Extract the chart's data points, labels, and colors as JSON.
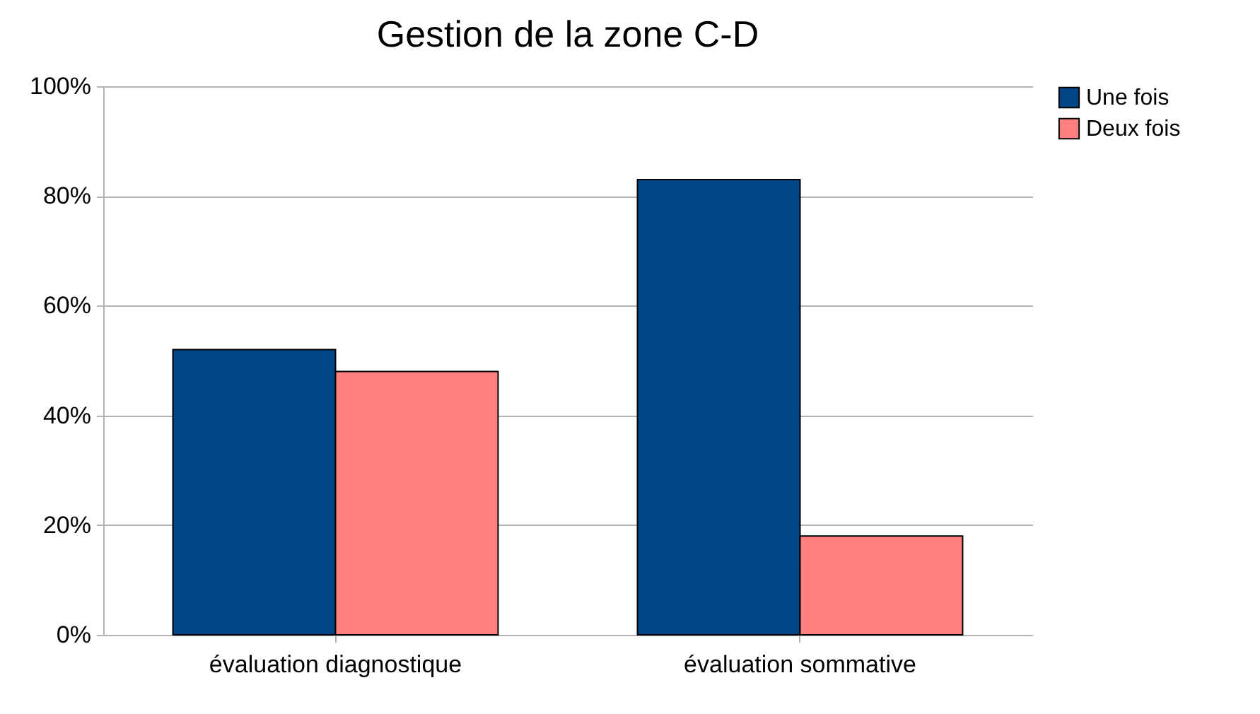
{
  "chart_data": {
    "type": "bar",
    "title": "Gestion de la zone C-D",
    "categories": [
      "évaluation diagnostique",
      "évaluation sommative"
    ],
    "series": [
      {
        "name": "Une fois",
        "color": "#004586",
        "values": [
          52,
          83
        ]
      },
      {
        "name": "Deux fois",
        "color": "#ff8080",
        "values": [
          48,
          18
        ]
      }
    ],
    "ylim": [
      0,
      100
    ],
    "yticks": [
      {
        "value": 0,
        "label": "0%"
      },
      {
        "value": 20,
        "label": "20%"
      },
      {
        "value": 40,
        "label": "40%"
      },
      {
        "value": 60,
        "label": "60%"
      },
      {
        "value": 80,
        "label": "80%"
      },
      {
        "value": 100,
        "label": "100%"
      }
    ],
    "grid": "y",
    "legend": "right"
  }
}
